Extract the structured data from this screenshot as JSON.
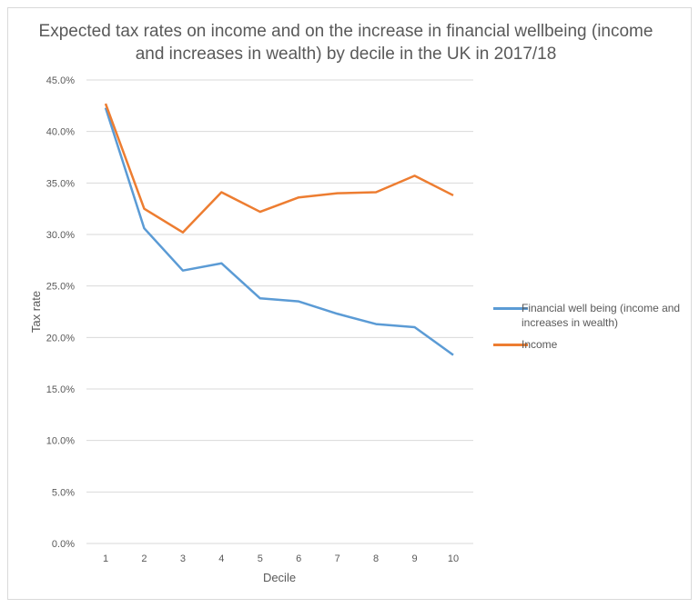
{
  "chart_data": {
    "type": "line",
    "title": "Expected tax rates on income and on the increase in financial wellbeing (income and increases in wealth) by decile in the UK in 2017/18",
    "xlabel": "Decile",
    "ylabel": "Tax rate",
    "categories": [
      "1",
      "2",
      "3",
      "4",
      "5",
      "6",
      "7",
      "8",
      "9",
      "10"
    ],
    "ylim": [
      0,
      45
    ],
    "yticks": [
      "0.0%",
      "5.0%",
      "10.0%",
      "15.0%",
      "20.0%",
      "25.0%",
      "30.0%",
      "35.0%",
      "40.0%",
      "45.0%"
    ],
    "grid": true,
    "legend_position": "right",
    "series": [
      {
        "name": "Financial well being (income and increases in wealth)",
        "color": "#5B9BD5",
        "values": [
          42.3,
          30.6,
          26.5,
          27.2,
          23.8,
          23.5,
          22.3,
          21.3,
          21.0,
          18.3
        ]
      },
      {
        "name": "Income",
        "color": "#ED7D31",
        "values": [
          42.7,
          32.5,
          30.2,
          34.1,
          32.2,
          33.6,
          34.0,
          34.1,
          35.7,
          33.8
        ]
      }
    ]
  }
}
